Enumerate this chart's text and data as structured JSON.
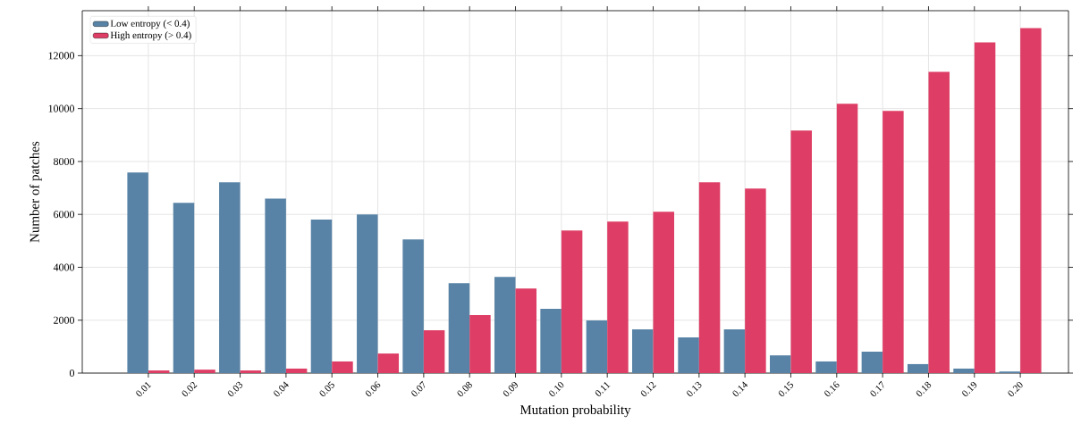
{
  "chart_data": {
    "type": "bar",
    "xlabel": "Mutation probability",
    "ylabel": "Number of patches",
    "categories": [
      "0.01",
      "0.02",
      "0.03",
      "0.04",
      "0.05",
      "0.06",
      "0.07",
      "0.08",
      "0.09",
      "0.10",
      "0.11",
      "0.12",
      "0.13",
      "0.14",
      "0.15",
      "0.16",
      "0.17",
      "0.18",
      "0.19",
      "0.20"
    ],
    "series": [
      {
        "name": "Low entropy (< 0.4)",
        "color": "#5883a6",
        "values": [
          7580,
          6440,
          7210,
          6600,
          5800,
          6000,
          5050,
          3400,
          3640,
          2430,
          1990,
          1650,
          1350,
          1650,
          670,
          440,
          810,
          340,
          170,
          60
        ]
      },
      {
        "name": "High entropy (> 0.4)",
        "color": "#de3e65",
        "values": [
          100,
          130,
          100,
          170,
          440,
          740,
          1620,
          2190,
          3200,
          5390,
          5730,
          6100,
          7210,
          6980,
          9170,
          10180,
          9910,
          11390,
          12500,
          13040
        ]
      }
    ],
    "ylim": [
      0,
      13700
    ],
    "yticks": [
      0,
      2000,
      4000,
      6000,
      8000,
      10000,
      12000
    ],
    "grid": true,
    "legend": "top left"
  }
}
